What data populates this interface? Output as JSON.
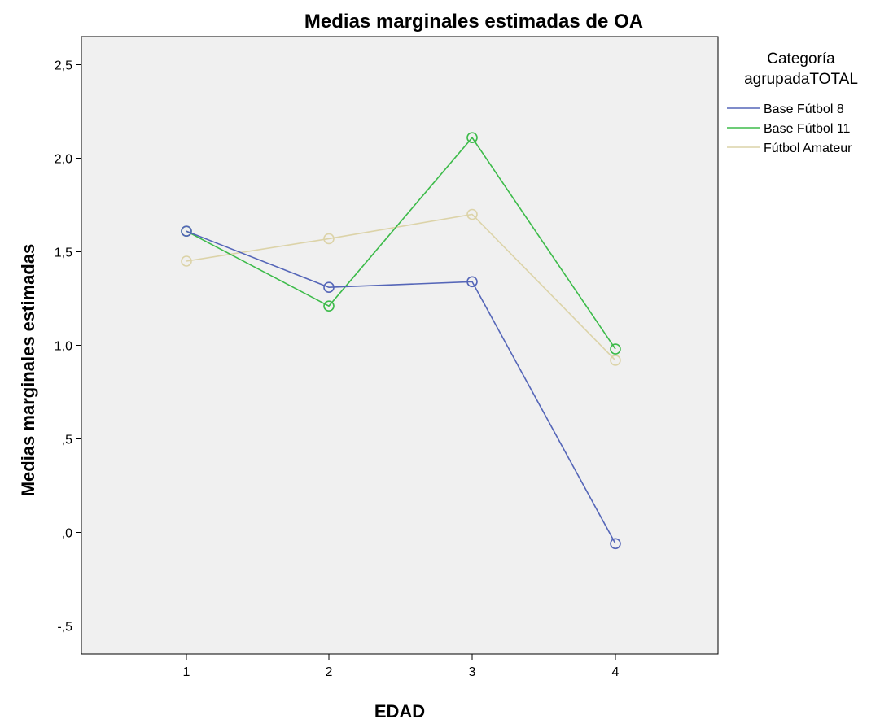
{
  "chart_data": {
    "type": "line",
    "title": "Medias marginales estimadas de OA",
    "xlabel": "EDAD",
    "ylabel": "Medias marginales estimadas",
    "categories": [
      "1",
      "2",
      "3",
      "4"
    ],
    "ylim": [
      -0.65,
      2.65
    ],
    "yticks": [
      2.5,
      2.0,
      1.5,
      1.0,
      0.5,
      0.0,
      -0.5
    ],
    "ytick_labels": [
      "2,5",
      "2,0",
      "1,5",
      "1,0",
      ",5",
      ",0",
      "-,5"
    ],
    "grid": false,
    "marker": "circle-open",
    "plot_background": "#f0f0f0",
    "legend": {
      "title_lines": [
        "Categoría",
        "agrupadaTOTAL"
      ],
      "position": "right"
    },
    "series": [
      {
        "name": "Base Fútbol 8",
        "color": "#5566b8",
        "values": [
          1.61,
          1.31,
          1.34,
          -0.06
        ]
      },
      {
        "name": "Base Fútbol 11",
        "color": "#3dbb4a",
        "values": [
          1.61,
          1.21,
          2.11,
          0.98
        ]
      },
      {
        "name": "Fútbol Amateur",
        "color": "#dcd3a8",
        "values": [
          1.45,
          1.57,
          1.7,
          0.92
        ]
      }
    ]
  }
}
